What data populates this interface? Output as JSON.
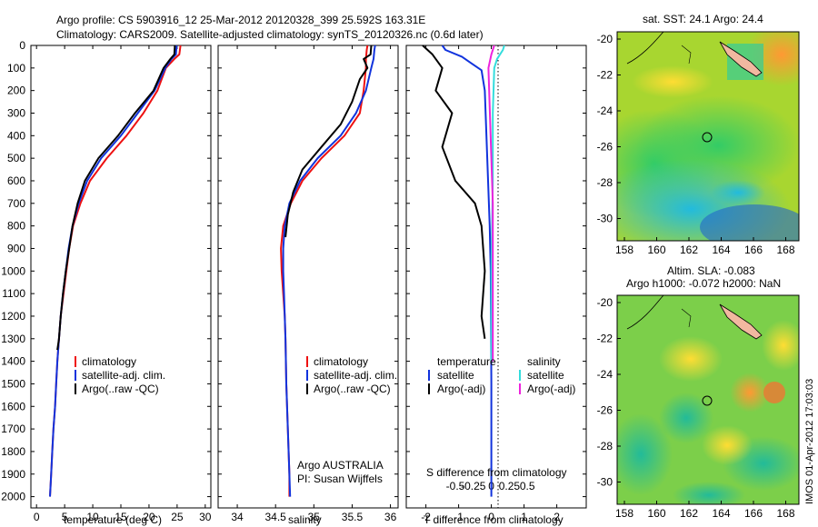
{
  "header": {
    "line1": "Argo profile: CS 5903916_12 25-Mar-2012 20120328_399 25.592S 163.31E",
    "line2": "Climatology: CARS2009. Satellite-adjusted climatology: synTS_20120326.nc (0.6d later)"
  },
  "colors": {
    "climatology": "#ee1111",
    "satellite": "#1133dd",
    "argo": "#000000",
    "sat_salinity": "#33dddd",
    "argo_salinity": "#ee22dd"
  },
  "chart_data": [
    {
      "type": "line",
      "xlabel": "temperature (deg C)",
      "ylim": [
        0,
        2050
      ],
      "xlim": [
        -1,
        31
      ],
      "xticks": [
        0,
        5,
        10,
        15,
        20,
        25,
        30
      ],
      "yticks": [
        0,
        100,
        200,
        300,
        400,
        500,
        600,
        700,
        800,
        900,
        1000,
        1100,
        1200,
        1300,
        1400,
        1500,
        1600,
        1700,
        1800,
        1900,
        2000
      ],
      "legend": [
        "climatology",
        "satellite-adj. clim.",
        "Argo(..raw -QC)"
      ],
      "series": [
        {
          "name": "climatology",
          "color": "#ee1111",
          "points": [
            [
              25.6,
              0
            ],
            [
              25.4,
              40
            ],
            [
              24.5,
              60
            ],
            [
              23.0,
              100
            ],
            [
              21.5,
              200
            ],
            [
              19.0,
              300
            ],
            [
              16.0,
              400
            ],
            [
              12.5,
              500
            ],
            [
              9.5,
              600
            ],
            [
              7.8,
              700
            ],
            [
              6.5,
              800
            ],
            [
              5.8,
              900
            ],
            [
              5.3,
              1000
            ],
            [
              4.8,
              1100
            ],
            [
              4.3,
              1200
            ],
            [
              4.0,
              1300
            ],
            [
              3.7,
              1400
            ],
            [
              3.5,
              1500
            ],
            [
              3.3,
              1600
            ],
            [
              3.0,
              1700
            ],
            [
              2.8,
              1800
            ],
            [
              2.6,
              1900
            ],
            [
              2.4,
              2000
            ]
          ]
        },
        {
          "name": "satellite-adj. clim.",
          "color": "#1133dd",
          "points": [
            [
              24.9,
              0
            ],
            [
              24.8,
              40
            ],
            [
              24.0,
              60
            ],
            [
              22.9,
              100
            ],
            [
              21.0,
              200
            ],
            [
              18.0,
              300
            ],
            [
              15.0,
              400
            ],
            [
              11.5,
              500
            ],
            [
              9.0,
              600
            ],
            [
              7.5,
              700
            ],
            [
              6.4,
              800
            ],
            [
              5.7,
              900
            ],
            [
              5.2,
              1000
            ],
            [
              4.7,
              1100
            ],
            [
              4.3,
              1200
            ],
            [
              4.0,
              1300
            ],
            [
              3.7,
              1400
            ],
            [
              3.5,
              1500
            ],
            [
              3.3,
              1600
            ],
            [
              3.0,
              1700
            ],
            [
              2.8,
              1800
            ],
            [
              2.6,
              1900
            ],
            [
              2.4,
              2000
            ]
          ]
        },
        {
          "name": "Argo(..raw -QC)",
          "color": "#000000",
          "points": [
            [
              24.6,
              0
            ],
            [
              24.5,
              40
            ],
            [
              23.8,
              60
            ],
            [
              22.6,
              100
            ],
            [
              20.8,
              200
            ],
            [
              17.5,
              300
            ],
            [
              14.5,
              400
            ],
            [
              11.0,
              500
            ],
            [
              8.6,
              600
            ],
            [
              7.3,
              700
            ],
            [
              6.4,
              800
            ],
            [
              5.8,
              900
            ],
            [
              5.2,
              1000
            ],
            [
              4.7,
              1100
            ],
            [
              4.3,
              1200
            ],
            [
              4.0,
              1300
            ],
            [
              3.7,
              1350
            ]
          ]
        }
      ]
    },
    {
      "type": "line",
      "xlabel": "salinity",
      "ylim": [
        0,
        2050
      ],
      "xlim": [
        33.75,
        36.1
      ],
      "xticks": [
        34,
        34.5,
        35,
        35.5,
        36
      ],
      "legend": [
        "climatology",
        "satellite-adj. clim.",
        "Argo(..raw -QC)"
      ],
      "annotations": [
        "Argo AUSTRALIA",
        "PI: Susan Wijffels"
      ],
      "series": [
        {
          "name": "climatology",
          "color": "#ee1111",
          "points": [
            [
              35.7,
              0
            ],
            [
              35.69,
              20
            ],
            [
              35.68,
              60
            ],
            [
              35.68,
              100
            ],
            [
              35.65,
              200
            ],
            [
              35.6,
              300
            ],
            [
              35.4,
              400
            ],
            [
              35.1,
              500
            ],
            [
              34.85,
              600
            ],
            [
              34.7,
              700
            ],
            [
              34.6,
              800
            ],
            [
              34.57,
              900
            ],
            [
              34.58,
              1000
            ],
            [
              34.6,
              1100
            ],
            [
              34.62,
              1200
            ],
            [
              34.63,
              1300
            ],
            [
              34.64,
              1500
            ],
            [
              34.66,
              1700
            ],
            [
              34.68,
              1900
            ],
            [
              34.68,
              2000
            ]
          ]
        },
        {
          "name": "satellite-adj. clim.",
          "color": "#1133dd",
          "points": [
            [
              35.8,
              0
            ],
            [
              35.79,
              20
            ],
            [
              35.78,
              60
            ],
            [
              35.75,
              100
            ],
            [
              35.68,
              200
            ],
            [
              35.55,
              300
            ],
            [
              35.35,
              400
            ],
            [
              35.05,
              500
            ],
            [
              34.82,
              600
            ],
            [
              34.68,
              700
            ],
            [
              34.62,
              800
            ],
            [
              34.6,
              900
            ],
            [
              34.6,
              1000
            ],
            [
              34.61,
              1100
            ],
            [
              34.62,
              1200
            ],
            [
              34.63,
              1300
            ],
            [
              34.64,
              1500
            ],
            [
              34.66,
              1700
            ],
            [
              34.68,
              1900
            ],
            [
              34.69,
              2000
            ]
          ]
        },
        {
          "name": "Argo(..raw -QC)",
          "color": "#000000",
          "points": [
            [
              35.75,
              0
            ],
            [
              35.74,
              40
            ],
            [
              35.65,
              60
            ],
            [
              35.7,
              100
            ],
            [
              35.6,
              150
            ],
            [
              35.5,
              250
            ],
            [
              35.35,
              350
            ],
            [
              35.1,
              450
            ],
            [
              34.85,
              550
            ],
            [
              34.73,
              650
            ],
            [
              34.66,
              750
            ],
            [
              34.63,
              850
            ]
          ]
        }
      ]
    },
    {
      "type": "line",
      "xlabel": "T difference from climatology",
      "top_label": "S difference from climatology",
      "ylim": [
        0,
        2050
      ],
      "xlim": [
        -2.6,
        2.9
      ],
      "xticks": [
        -2,
        -1,
        0,
        1,
        2
      ],
      "top_ticks": [
        "-0.5",
        "-0.25",
        "0",
        "0.25",
        "0.5"
      ],
      "legend_temperature": {
        "title": "temperature",
        "items": [
          "satellite",
          "Argo(-adj)"
        ]
      },
      "legend_salinity": {
        "title": "salinity",
        "items": [
          "satellite",
          "Argo(-adj)"
        ]
      },
      "series": [
        {
          "name": "temperature satellite",
          "color": "#1133dd",
          "points": [
            [
              -1.5,
              0
            ],
            [
              -1.4,
              20
            ],
            [
              -0.9,
              50
            ],
            [
              -0.6,
              80
            ],
            [
              -0.3,
              110
            ],
            [
              -0.2,
              200
            ],
            [
              -0.15,
              400
            ],
            [
              -0.1,
              600
            ],
            [
              -0.05,
              800
            ],
            [
              -0.02,
              1000
            ],
            [
              0.0,
              1500
            ],
            [
              0.0,
              2000
            ]
          ]
        },
        {
          "name": "temperature Argo(-adj)",
          "color": "#000000",
          "points": [
            [
              -2.1,
              0
            ],
            [
              -1.8,
              40
            ],
            [
              -1.5,
              100
            ],
            [
              -1.7,
              200
            ],
            [
              -1.2,
              300
            ],
            [
              -1.5,
              450
            ],
            [
              -1.1,
              600
            ],
            [
              -0.5,
              700
            ],
            [
              -0.3,
              800
            ],
            [
              -0.2,
              1000
            ],
            [
              -0.3,
              1200
            ],
            [
              -0.2,
              1300
            ]
          ]
        },
        {
          "name": "salinity satellite",
          "color": "#33dddd",
          "points": [
            [
              0.09,
              0
            ],
            [
              0.08,
              20
            ],
            [
              0.04,
              60
            ],
            [
              0.02,
              100
            ],
            [
              0.01,
              300
            ],
            [
              0.01,
              600
            ],
            [
              0.0,
              1000
            ],
            [
              0.0,
              1400
            ]
          ]
        },
        {
          "name": "salinity Argo(-adj)",
          "color": "#ee22dd",
          "points": [
            [
              0.02,
              0
            ],
            [
              0.0,
              40
            ],
            [
              -0.02,
              100
            ],
            [
              -0.01,
              300
            ],
            [
              0.0,
              500
            ],
            [
              0.01,
              700
            ],
            [
              0.01,
              900
            ],
            [
              0.01,
              1400
            ]
          ]
        }
      ]
    }
  ],
  "maps": [
    {
      "title": "sat. SST: 24.1  Argo: 24.4",
      "yticks": [
        "-20",
        "-22",
        "-24",
        "-26",
        "-28",
        "-30"
      ],
      "xticks": [
        "158",
        "160",
        "162",
        "164",
        "166",
        "168"
      ]
    },
    {
      "title1": "Altim. SLA: -0.083",
      "title2": "Argo h1000: -0.072 h2000: NaN",
      "yticks": [
        "-20",
        "-22",
        "-24",
        "-26",
        "-28",
        "-30"
      ],
      "xticks": [
        "158",
        "160",
        "162",
        "164",
        "166",
        "168"
      ]
    }
  ],
  "footer": {
    "stamp": "IMOS 01-Apr-2012 17:03:03"
  }
}
